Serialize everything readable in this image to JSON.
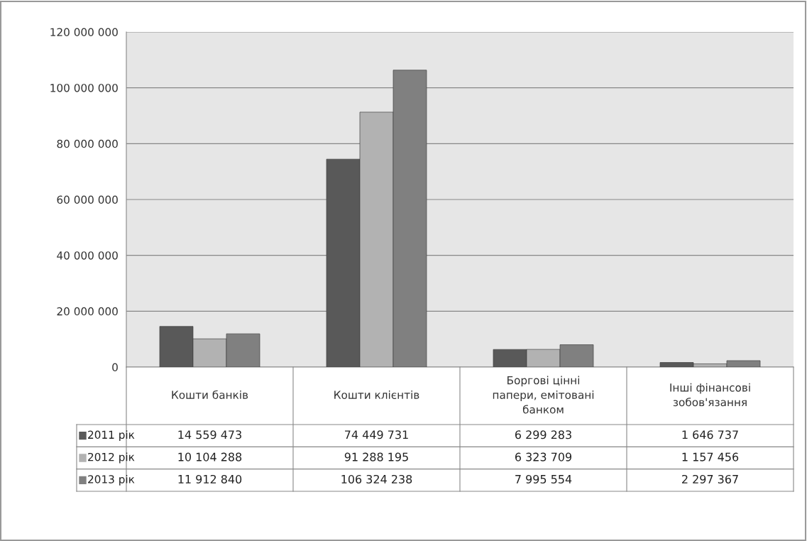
{
  "chart_data": {
    "type": "bar",
    "categories": [
      "Кошти банків",
      "Кошти клієнтів",
      "Боргові цінні\nпапери, емітовані\nбанком",
      "Інші фінансові\nзобов'язання"
    ],
    "series": [
      {
        "name": "2011 рік",
        "color": "#595959",
        "values": [
          14559473,
          74449731,
          6299283,
          1646737
        ],
        "value_labels": [
          "14 559 473",
          "74 449 731",
          "6 299 283",
          "1 646 737"
        ]
      },
      {
        "name": "2012 рік",
        "color": "#b2b2b2",
        "values": [
          10104288,
          91288195,
          6323709,
          1157456
        ],
        "value_labels": [
          "10 104 288",
          "91 288 195",
          "6 323 709",
          "1 157 456"
        ]
      },
      {
        "name": "2013 рік",
        "color": "#808080",
        "values": [
          11912840,
          106324238,
          7995554,
          2297367
        ],
        "value_labels": [
          "11 912 840",
          "106 324 238",
          "7 995 554",
          "2 297 367"
        ]
      }
    ],
    "ylim": [
      0,
      120000000
    ],
    "yticks": [
      {
        "value": 0,
        "label": "0"
      },
      {
        "value": 20000000,
        "label": "20 000 000"
      },
      {
        "value": 40000000,
        "label": "40 000 000"
      },
      {
        "value": 60000000,
        "label": "60 000 000"
      },
      {
        "value": 80000000,
        "label": "80 000 000"
      },
      {
        "value": 100000000,
        "label": "100 000 000"
      },
      {
        "value": 120000000,
        "label": "120 000 000"
      }
    ],
    "grid": "y",
    "legend": "bottom left"
  }
}
